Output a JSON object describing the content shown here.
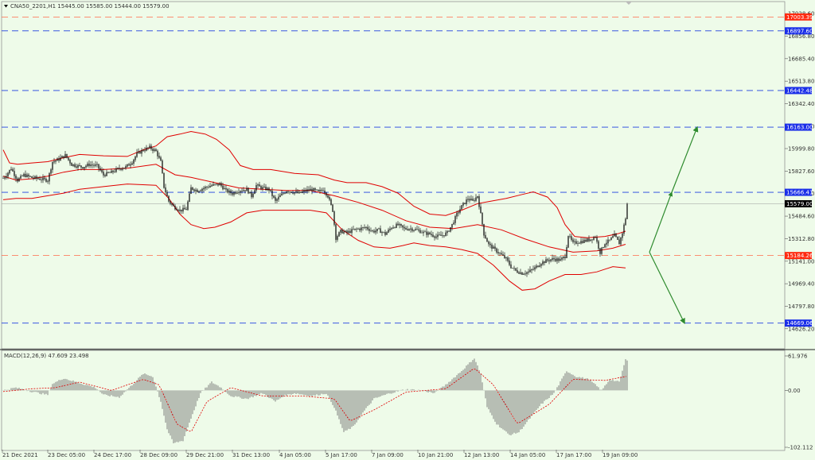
{
  "header": {
    "symbol_info": "CNA50_2201,H1  15445.00 15585.00 15444.00 15579.00",
    "macd_info": "MACD(12,26,9) 47.609 23.498"
  },
  "colors": {
    "background": "#eefbe9",
    "candle": "#000000",
    "bollinger": "#e00000",
    "blue_level": "#1f3fe0",
    "red_level": "#ff6a4a",
    "arrow": "#2e8b2e",
    "macd_hist": "#808080",
    "macd_signal": "#e00000"
  },
  "chart_data": [
    {
      "type": "candlestick",
      "ylim": [
        14540,
        17060
      ],
      "y_ticks": [
        "17028.60",
        "16856.80",
        "16685.40",
        "16513.80",
        "16342.40",
        "16170.80",
        "15999.80",
        "15827.60",
        "15656.20",
        "15484.60",
        "15312.80",
        "15141.00",
        "14969.40",
        "14797.80",
        "14626.20"
      ],
      "x_ticks": [
        "21 Dec 2021",
        "23 Dec 05:00",
        "24 Dec 17:00",
        "28 Dec 09:00",
        "29 Dec 21:00",
        "31 Dec 13:00",
        "4 Jan 05:00",
        "5 Jan 17:00",
        "7 Jan 09:00",
        "10 Jan 21:00",
        "12 Jan 13:00",
        "14 Jan 05:00",
        "17 Jan 17:00",
        "19 Jan 09:00"
      ],
      "current_price": "15579.00",
      "levels": [
        {
          "value": "17003.39",
          "kind": "resistance",
          "style": "red"
        },
        {
          "value": "16897.60",
          "kind": "resistance",
          "style": "blue"
        },
        {
          "value": "16442.48",
          "kind": "resistance",
          "style": "blue"
        },
        {
          "value": "16163.00",
          "kind": "target",
          "style": "blue"
        },
        {
          "value": "15666.41",
          "kind": "pivot",
          "style": "blue"
        },
        {
          "value": "15184.26",
          "kind": "support",
          "style": "red"
        },
        {
          "value": "14669.06",
          "kind": "target",
          "style": "blue"
        }
      ],
      "price_path": [
        [
          0,
          15750
        ],
        [
          8,
          15800
        ],
        [
          14,
          15850
        ],
        [
          22,
          15760
        ],
        [
          30,
          15800
        ],
        [
          40,
          15780
        ],
        [
          50,
          15770
        ],
        [
          60,
          15760
        ],
        [
          66,
          15900
        ],
        [
          74,
          15920
        ],
        [
          82,
          15950
        ],
        [
          90,
          15880
        ],
        [
          96,
          15870
        ],
        [
          104,
          15860
        ],
        [
          112,
          15880
        ],
        [
          122,
          15870
        ],
        [
          130,
          15800
        ],
        [
          140,
          15820
        ],
        [
          150,
          15850
        ],
        [
          158,
          15860
        ],
        [
          166,
          15900
        ],
        [
          172,
          15960
        ],
        [
          180,
          15990
        ],
        [
          188,
          16010
        ],
        [
          196,
          15980
        ],
        [
          202,
          15900
        ],
        [
          206,
          15710
        ],
        [
          212,
          15600
        ],
        [
          218,
          15560
        ],
        [
          226,
          15530
        ],
        [
          234,
          15540
        ],
        [
          240,
          15700
        ],
        [
          248,
          15680
        ],
        [
          256,
          15700
        ],
        [
          266,
          15720
        ],
        [
          276,
          15730
        ],
        [
          284,
          15680
        ],
        [
          292,
          15660
        ],
        [
          300,
          15680
        ],
        [
          310,
          15690
        ],
        [
          316,
          15640
        ],
        [
          322,
          15720
        ],
        [
          330,
          15700
        ],
        [
          338,
          15690
        ],
        [
          346,
          15600
        ],
        [
          352,
          15640
        ],
        [
          360,
          15680
        ],
        [
          368,
          15670
        ],
        [
          376,
          15660
        ],
        [
          384,
          15680
        ],
        [
          392,
          15690
        ],
        [
          400,
          15670
        ],
        [
          406,
          15690
        ],
        [
          412,
          15640
        ],
        [
          418,
          15530
        ],
        [
          422,
          15320
        ],
        [
          428,
          15370
        ],
        [
          436,
          15360
        ],
        [
          444,
          15380
        ],
        [
          452,
          15390
        ],
        [
          460,
          15400
        ],
        [
          468,
          15370
        ],
        [
          476,
          15380
        ],
        [
          484,
          15350
        ],
        [
          492,
          15400
        ],
        [
          500,
          15420
        ],
        [
          508,
          15390
        ],
        [
          516,
          15390
        ],
        [
          524,
          15380
        ],
        [
          532,
          15360
        ],
        [
          540,
          15350
        ],
        [
          548,
          15330
        ],
        [
          556,
          15340
        ],
        [
          562,
          15360
        ],
        [
          568,
          15420
        ],
        [
          574,
          15500
        ],
        [
          580,
          15560
        ],
        [
          588,
          15620
        ],
        [
          594,
          15600
        ],
        [
          600,
          15640
        ],
        [
          604,
          15500
        ],
        [
          608,
          15350
        ],
        [
          614,
          15270
        ],
        [
          620,
          15240
        ],
        [
          628,
          15200
        ],
        [
          636,
          15160
        ],
        [
          642,
          15100
        ],
        [
          648,
          15070
        ],
        [
          656,
          15050
        ],
        [
          664,
          15060
        ],
        [
          672,
          15090
        ],
        [
          680,
          15130
        ],
        [
          688,
          15150
        ],
        [
          696,
          15160
        ],
        [
          704,
          15150
        ],
        [
          710,
          15180
        ],
        [
          714,
          15340
        ],
        [
          720,
          15280
        ],
        [
          728,
          15290
        ],
        [
          736,
          15300
        ],
        [
          742,
          15310
        ],
        [
          748,
          15330
        ],
        [
          754,
          15210
        ],
        [
          760,
          15280
        ],
        [
          766,
          15300
        ],
        [
          772,
          15340
        ],
        [
          778,
          15280
        ],
        [
          782,
          15360
        ],
        [
          786,
          15470
        ],
        [
          788,
          15579
        ]
      ],
      "bollinger_upper": [
        [
          4,
          15990
        ],
        [
          12,
          15890
        ],
        [
          22,
          15880
        ],
        [
          40,
          15890
        ],
        [
          60,
          15900
        ],
        [
          80,
          15930
        ],
        [
          100,
          15955
        ],
        [
          130,
          15945
        ],
        [
          160,
          15940
        ],
        [
          180,
          15990
        ],
        [
          196,
          16020
        ],
        [
          210,
          16090
        ],
        [
          226,
          16110
        ],
        [
          240,
          16130
        ],
        [
          258,
          16110
        ],
        [
          272,
          16070
        ],
        [
          288,
          15990
        ],
        [
          302,
          15870
        ],
        [
          318,
          15840
        ],
        [
          340,
          15840
        ],
        [
          370,
          15810
        ],
        [
          400,
          15800
        ],
        [
          420,
          15760
        ],
        [
          436,
          15740
        ],
        [
          460,
          15740
        ],
        [
          480,
          15710
        ],
        [
          500,
          15660
        ],
        [
          520,
          15560
        ],
        [
          540,
          15500
        ],
        [
          560,
          15490
        ],
        [
          580,
          15530
        ],
        [
          600,
          15580
        ],
        [
          618,
          15600
        ],
        [
          636,
          15620
        ],
        [
          656,
          15650
        ],
        [
          670,
          15670
        ],
        [
          688,
          15630
        ],
        [
          700,
          15550
        ],
        [
          710,
          15420
        ],
        [
          722,
          15330
        ],
        [
          738,
          15320
        ],
        [
          760,
          15330
        ],
        [
          776,
          15350
        ],
        [
          786,
          15370
        ]
      ],
      "bollinger_mid": [
        [
          4,
          15790
        ],
        [
          20,
          15760
        ],
        [
          40,
          15770
        ],
        [
          60,
          15790
        ],
        [
          80,
          15820
        ],
        [
          100,
          15840
        ],
        [
          130,
          15840
        ],
        [
          160,
          15850
        ],
        [
          196,
          15880
        ],
        [
          220,
          15800
        ],
        [
          240,
          15780
        ],
        [
          270,
          15740
        ],
        [
          300,
          15700
        ],
        [
          330,
          15690
        ],
        [
          360,
          15680
        ],
        [
          390,
          15680
        ],
        [
          420,
          15640
        ],
        [
          450,
          15590
        ],
        [
          480,
          15530
        ],
        [
          510,
          15450
        ],
        [
          540,
          15400
        ],
        [
          570,
          15390
        ],
        [
          600,
          15420
        ],
        [
          630,
          15380
        ],
        [
          660,
          15310
        ],
        [
          690,
          15250
        ],
        [
          720,
          15210
        ],
        [
          750,
          15220
        ],
        [
          770,
          15240
        ],
        [
          786,
          15270
        ]
      ],
      "bollinger_lower": [
        [
          4,
          15610
        ],
        [
          20,
          15620
        ],
        [
          40,
          15620
        ],
        [
          60,
          15640
        ],
        [
          80,
          15660
        ],
        [
          100,
          15690
        ],
        [
          130,
          15710
        ],
        [
          160,
          15730
        ],
        [
          196,
          15720
        ],
        [
          212,
          15620
        ],
        [
          226,
          15500
        ],
        [
          240,
          15420
        ],
        [
          256,
          15390
        ],
        [
          270,
          15400
        ],
        [
          290,
          15440
        ],
        [
          310,
          15510
        ],
        [
          330,
          15530
        ],
        [
          350,
          15530
        ],
        [
          370,
          15530
        ],
        [
          390,
          15530
        ],
        [
          410,
          15510
        ],
        [
          430,
          15380
        ],
        [
          450,
          15300
        ],
        [
          470,
          15250
        ],
        [
          490,
          15240
        ],
        [
          506,
          15260
        ],
        [
          520,
          15280
        ],
        [
          540,
          15260
        ],
        [
          560,
          15250
        ],
        [
          580,
          15230
        ],
        [
          600,
          15200
        ],
        [
          620,
          15110
        ],
        [
          640,
          14990
        ],
        [
          656,
          14920
        ],
        [
          672,
          14930
        ],
        [
          690,
          14990
        ],
        [
          710,
          15040
        ],
        [
          730,
          15040
        ],
        [
          750,
          15060
        ],
        [
          770,
          15100
        ],
        [
          786,
          15090
        ]
      ],
      "arrows": [
        {
          "direction": "up",
          "from": [
            816,
            15210
          ],
          "mid": [
            844,
            15666
          ],
          "to": [
            876,
            16163
          ]
        },
        {
          "direction": "down",
          "from": [
            816,
            15210
          ],
          "to": [
            860,
            14669
          ]
        }
      ]
    },
    {
      "type": "bar",
      "name": "MACD(12,26,9)",
      "ylim": [
        -102.112,
        61.976
      ],
      "y_ticks": [
        "61.976",
        "0.00",
        "-102.112"
      ],
      "histogram_keyframes": [
        [
          4,
          0
        ],
        [
          20,
          5
        ],
        [
          40,
          -2
        ],
        [
          60,
          -8
        ],
        [
          66,
          12
        ],
        [
          80,
          22
        ],
        [
          96,
          15
        ],
        [
          120,
          5
        ],
        [
          130,
          -8
        ],
        [
          150,
          -12
        ],
        [
          166,
          10
        ],
        [
          180,
          30
        ],
        [
          192,
          25
        ],
        [
          202,
          -20
        ],
        [
          210,
          -70
        ],
        [
          218,
          -95
        ],
        [
          230,
          -90
        ],
        [
          240,
          -50
        ],
        [
          252,
          -5
        ],
        [
          266,
          15
        ],
        [
          278,
          5
        ],
        [
          290,
          -10
        ],
        [
          310,
          -15
        ],
        [
          330,
          -5
        ],
        [
          346,
          -20
        ],
        [
          356,
          -10
        ],
        [
          370,
          -5
        ],
        [
          392,
          -10
        ],
        [
          410,
          -5
        ],
        [
          420,
          -30
        ],
        [
          432,
          -75
        ],
        [
          444,
          -65
        ],
        [
          456,
          -40
        ],
        [
          470,
          -15
        ],
        [
          490,
          -5
        ],
        [
          510,
          2
        ],
        [
          530,
          0
        ],
        [
          546,
          -5
        ],
        [
          560,
          10
        ],
        [
          580,
          35
        ],
        [
          596,
          58
        ],
        [
          604,
          30
        ],
        [
          612,
          -30
        ],
        [
          624,
          -60
        ],
        [
          640,
          -80
        ],
        [
          652,
          -75
        ],
        [
          666,
          -50
        ],
        [
          680,
          -25
        ],
        [
          696,
          -5
        ],
        [
          712,
          35
        ],
        [
          724,
          25
        ],
        [
          740,
          20
        ],
        [
          756,
          0
        ],
        [
          766,
          20
        ],
        [
          778,
          15
        ],
        [
          786,
          55
        ]
      ],
      "signal_keyframes": [
        [
          4,
          -2
        ],
        [
          40,
          3
        ],
        [
          70,
          5
        ],
        [
          100,
          15
        ],
        [
          140,
          0
        ],
        [
          180,
          20
        ],
        [
          200,
          10
        ],
        [
          222,
          -60
        ],
        [
          240,
          -75
        ],
        [
          260,
          -20
        ],
        [
          290,
          5
        ],
        [
          330,
          -10
        ],
        [
          380,
          -10
        ],
        [
          420,
          -15
        ],
        [
          440,
          -55
        ],
        [
          470,
          -35
        ],
        [
          510,
          -3
        ],
        [
          560,
          3
        ],
        [
          596,
          40
        ],
        [
          620,
          10
        ],
        [
          650,
          -60
        ],
        [
          690,
          -25
        ],
        [
          720,
          20
        ],
        [
          760,
          18
        ],
        [
          786,
          25
        ]
      ]
    }
  ]
}
